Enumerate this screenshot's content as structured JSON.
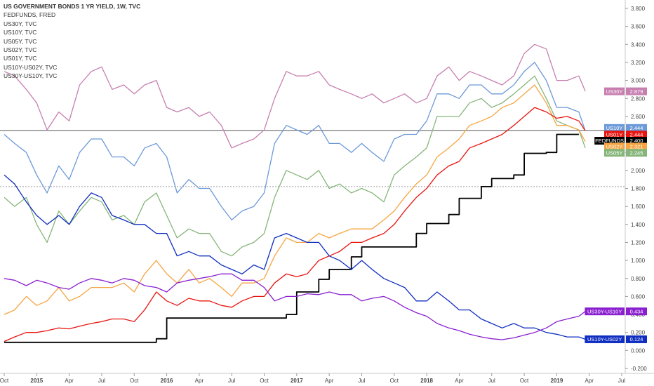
{
  "chart_data": {
    "type": "line",
    "title": "US GOVERNMENT BONDS 1 YR YIELD, 1W, TVC",
    "legend": [
      "US GOVERNMENT BONDS 1 YR YIELD, 1W, TVC",
      "FEDFUNDS, FRED",
      "US30Y, TVC",
      "US10Y, TVC",
      "US05Y, TVC",
      "US02Y, TVC",
      "US01Y, TVC",
      "US10Y-US02Y, TVC",
      "US30Y-US10Y, TVC"
    ],
    "y_axis": {
      "range": [
        -0.25,
        3.9
      ],
      "ticks": [
        "3.800",
        "3.600",
        "3.400",
        "3.200",
        "3.000",
        "2.800",
        "2.600",
        "2.400",
        "2.200",
        "2.000",
        "1.800",
        "1.600",
        "1.400",
        "1.200",
        "1.000",
        "0.800",
        "0.600",
        "0.400",
        "0.200",
        "0.000",
        "-0.200"
      ]
    },
    "x_axis": {
      "range": [
        "2014-10",
        "2019-07"
      ],
      "ticks": [
        {
          "label": "Oct",
          "t": 2014.75
        },
        {
          "label": "2015",
          "t": 2015.0,
          "bold": true
        },
        {
          "label": "Apr",
          "t": 2015.25
        },
        {
          "label": "Jul",
          "t": 2015.5
        },
        {
          "label": "Oct",
          "t": 2015.75
        },
        {
          "label": "2016",
          "t": 2016.0,
          "bold": true
        },
        {
          "label": "Apr",
          "t": 2016.25
        },
        {
          "label": "Jul",
          "t": 2016.5
        },
        {
          "label": "Oct",
          "t": 2016.75
        },
        {
          "label": "2017",
          "t": 2017.0,
          "bold": true
        },
        {
          "label": "Apr",
          "t": 2017.25
        },
        {
          "label": "Jul",
          "t": 2017.5
        },
        {
          "label": "Oct",
          "t": 2017.75
        },
        {
          "label": "2018",
          "t": 2018.0,
          "bold": true
        },
        {
          "label": "Apr",
          "t": 2018.25
        },
        {
          "label": "Jul",
          "t": 2018.5
        },
        {
          "label": "Oct",
          "t": 2018.75
        },
        {
          "label": "2019",
          "t": 2019.0,
          "bold": true
        },
        {
          "label": "Apr",
          "t": 2019.25
        },
        {
          "label": "Jul",
          "t": 2019.5
        }
      ]
    },
    "hlines": [
      {
        "value": 2.444,
        "color": "#555555"
      },
      {
        "value": 1.82,
        "color": "#9e9e9e",
        "dashed": true
      }
    ],
    "series": [
      {
        "name": "US30Y",
        "color": "#c77fb0",
        "t": [
          2014.75,
          2014.83,
          2014.92,
          2015.0,
          2015.08,
          2015.17,
          2015.25,
          2015.33,
          2015.42,
          2015.5,
          2015.58,
          2015.67,
          2015.75,
          2015.83,
          2015.92,
          2016.0,
          2016.08,
          2016.17,
          2016.25,
          2016.33,
          2016.42,
          2016.5,
          2016.58,
          2016.67,
          2016.75,
          2016.83,
          2016.92,
          2017.0,
          2017.08,
          2017.17,
          2017.25,
          2017.33,
          2017.42,
          2017.5,
          2017.58,
          2017.67,
          2017.75,
          2017.83,
          2017.92,
          2018.0,
          2018.08,
          2018.17,
          2018.25,
          2018.33,
          2018.42,
          2018.5,
          2018.58,
          2018.67,
          2018.75,
          2018.83,
          2018.92,
          2019.0,
          2019.08,
          2019.17,
          2019.22
        ],
        "values": [
          3.1,
          3.05,
          2.9,
          2.75,
          2.45,
          2.65,
          2.55,
          2.95,
          3.1,
          3.15,
          2.9,
          2.95,
          2.85,
          2.95,
          3.0,
          2.7,
          2.65,
          2.7,
          2.6,
          2.65,
          2.5,
          2.25,
          2.3,
          2.35,
          2.45,
          2.8,
          3.1,
          3.05,
          3.05,
          3.1,
          2.95,
          2.9,
          2.85,
          2.8,
          2.85,
          2.75,
          2.8,
          2.85,
          2.75,
          2.8,
          3.05,
          3.15,
          3.0,
          3.1,
          3.05,
          3.0,
          2.95,
          3.05,
          3.3,
          3.4,
          3.35,
          3.0,
          3.0,
          3.05,
          2.88
        ]
      },
      {
        "name": "US10Y",
        "color": "#6c99d8",
        "t": [
          2014.75,
          2014.83,
          2014.92,
          2015.0,
          2015.08,
          2015.17,
          2015.25,
          2015.33,
          2015.42,
          2015.5,
          2015.58,
          2015.67,
          2015.75,
          2015.83,
          2015.92,
          2016.0,
          2016.08,
          2016.17,
          2016.25,
          2016.33,
          2016.42,
          2016.5,
          2016.58,
          2016.67,
          2016.75,
          2016.83,
          2016.92,
          2017.0,
          2017.08,
          2017.17,
          2017.25,
          2017.33,
          2017.42,
          2017.5,
          2017.58,
          2017.67,
          2017.75,
          2017.83,
          2017.92,
          2018.0,
          2018.08,
          2018.17,
          2018.25,
          2018.33,
          2018.42,
          2018.5,
          2018.58,
          2018.67,
          2018.75,
          2018.83,
          2018.92,
          2019.0,
          2019.08,
          2019.17,
          2019.22
        ],
        "values": [
          2.4,
          2.3,
          2.2,
          1.95,
          1.75,
          2.05,
          1.9,
          2.2,
          2.35,
          2.35,
          2.15,
          2.15,
          2.05,
          2.25,
          2.3,
          2.15,
          1.75,
          1.9,
          1.8,
          1.8,
          1.6,
          1.45,
          1.55,
          1.6,
          1.75,
          2.3,
          2.5,
          2.45,
          2.4,
          2.5,
          2.3,
          2.3,
          2.2,
          2.3,
          2.2,
          2.1,
          2.35,
          2.4,
          2.4,
          2.55,
          2.85,
          2.85,
          2.8,
          2.95,
          2.95,
          2.85,
          2.85,
          2.95,
          3.1,
          3.2,
          3.0,
          2.7,
          2.7,
          2.65,
          2.44
        ]
      },
      {
        "name": "US05Y",
        "color": "#86b57a",
        "t": [
          2014.75,
          2014.83,
          2014.92,
          2015.0,
          2015.08,
          2015.17,
          2015.25,
          2015.33,
          2015.42,
          2015.5,
          2015.58,
          2015.67,
          2015.75,
          2015.83,
          2015.92,
          2016.0,
          2016.08,
          2016.17,
          2016.25,
          2016.33,
          2016.42,
          2016.5,
          2016.58,
          2016.67,
          2016.75,
          2016.83,
          2016.92,
          2017.0,
          2017.08,
          2017.17,
          2017.25,
          2017.33,
          2017.42,
          2017.5,
          2017.58,
          2017.67,
          2017.75,
          2017.83,
          2017.92,
          2018.0,
          2018.08,
          2018.17,
          2018.25,
          2018.33,
          2018.42,
          2018.5,
          2018.58,
          2018.67,
          2018.75,
          2018.83,
          2018.92,
          2019.0,
          2019.08,
          2019.17,
          2019.22
        ],
        "values": [
          1.7,
          1.6,
          1.7,
          1.4,
          1.2,
          1.55,
          1.4,
          1.55,
          1.7,
          1.65,
          1.45,
          1.5,
          1.4,
          1.65,
          1.75,
          1.5,
          1.25,
          1.35,
          1.3,
          1.3,
          1.1,
          1.05,
          1.15,
          1.2,
          1.3,
          1.7,
          2.0,
          1.95,
          1.9,
          2.0,
          1.8,
          1.85,
          1.75,
          1.8,
          1.75,
          1.65,
          1.95,
          2.05,
          2.15,
          2.25,
          2.6,
          2.6,
          2.6,
          2.75,
          2.8,
          2.7,
          2.75,
          2.85,
          2.95,
          3.05,
          2.8,
          2.55,
          2.5,
          2.45,
          2.25
        ]
      },
      {
        "name": "US02Y",
        "color": "#f5a542",
        "t": [
          2014.75,
          2014.83,
          2014.92,
          2015.0,
          2015.08,
          2015.17,
          2015.25,
          2015.33,
          2015.42,
          2015.5,
          2015.58,
          2015.67,
          2015.75,
          2015.83,
          2015.92,
          2016.0,
          2016.08,
          2016.17,
          2016.25,
          2016.33,
          2016.42,
          2016.5,
          2016.58,
          2016.67,
          2016.75,
          2016.83,
          2016.92,
          2017.0,
          2017.08,
          2017.17,
          2017.25,
          2017.33,
          2017.42,
          2017.5,
          2017.58,
          2017.67,
          2017.75,
          2017.83,
          2017.92,
          2018.0,
          2018.08,
          2018.17,
          2018.25,
          2018.33,
          2018.42,
          2018.5,
          2018.58,
          2018.67,
          2018.75,
          2018.83,
          2018.92,
          2019.0,
          2019.08,
          2019.17,
          2019.22
        ],
        "values": [
          0.4,
          0.45,
          0.6,
          0.5,
          0.55,
          0.7,
          0.55,
          0.6,
          0.7,
          0.7,
          0.7,
          0.75,
          0.65,
          0.85,
          1.0,
          0.85,
          0.75,
          0.9,
          0.75,
          0.8,
          0.7,
          0.6,
          0.75,
          0.75,
          0.8,
          1.05,
          1.25,
          1.2,
          1.2,
          1.3,
          1.25,
          1.3,
          1.35,
          1.35,
          1.35,
          1.45,
          1.55,
          1.7,
          1.85,
          1.95,
          2.15,
          2.25,
          2.35,
          2.5,
          2.55,
          2.6,
          2.7,
          2.75,
          2.85,
          2.95,
          2.75,
          2.5,
          2.5,
          2.45,
          2.32
        ]
      },
      {
        "name": "US01Y",
        "color": "#e8140f",
        "t": [
          2014.75,
          2014.83,
          2014.92,
          2015.0,
          2015.08,
          2015.17,
          2015.25,
          2015.33,
          2015.42,
          2015.5,
          2015.58,
          2015.67,
          2015.75,
          2015.83,
          2015.92,
          2016.0,
          2016.08,
          2016.17,
          2016.25,
          2016.33,
          2016.42,
          2016.5,
          2016.58,
          2016.67,
          2016.75,
          2016.83,
          2016.92,
          2017.0,
          2017.08,
          2017.17,
          2017.25,
          2017.33,
          2017.42,
          2017.5,
          2017.58,
          2017.67,
          2017.75,
          2017.83,
          2017.92,
          2018.0,
          2018.08,
          2018.17,
          2018.25,
          2018.33,
          2018.42,
          2018.5,
          2018.58,
          2018.67,
          2018.75,
          2018.83,
          2018.92,
          2019.0,
          2019.08,
          2019.17,
          2019.22
        ],
        "values": [
          0.1,
          0.15,
          0.2,
          0.2,
          0.22,
          0.25,
          0.24,
          0.27,
          0.3,
          0.32,
          0.35,
          0.35,
          0.32,
          0.45,
          0.65,
          0.55,
          0.5,
          0.58,
          0.55,
          0.55,
          0.5,
          0.48,
          0.55,
          0.6,
          0.6,
          0.75,
          0.85,
          0.82,
          0.85,
          1.0,
          1.05,
          1.1,
          1.2,
          1.2,
          1.25,
          1.3,
          1.4,
          1.55,
          1.7,
          1.8,
          1.95,
          2.05,
          2.1,
          2.25,
          2.3,
          2.35,
          2.4,
          2.5,
          2.6,
          2.7,
          2.65,
          2.58,
          2.6,
          2.55,
          2.44
        ]
      },
      {
        "name": "FEDFUNDS",
        "color": "#000000",
        "step": true,
        "t": [
          2014.75,
          2015.92,
          2016.0,
          2016.92,
          2017.0,
          2017.17,
          2017.25,
          2017.42,
          2017.5,
          2017.92,
          2018.0,
          2018.17,
          2018.25,
          2018.42,
          2018.5,
          2018.67,
          2018.75,
          2018.92,
          2019.0,
          2019.17
        ],
        "values": [
          0.09,
          0.13,
          0.36,
          0.4,
          0.65,
          0.79,
          0.9,
          1.04,
          1.15,
          1.3,
          1.41,
          1.51,
          1.69,
          1.82,
          1.91,
          1.95,
          2.19,
          2.2,
          2.4,
          2.4
        ]
      },
      {
        "name": "US10Y-US02Y",
        "color": "#0f2ec0",
        "t": [
          2014.75,
          2014.83,
          2014.92,
          2015.0,
          2015.08,
          2015.17,
          2015.25,
          2015.33,
          2015.42,
          2015.5,
          2015.58,
          2015.67,
          2015.75,
          2015.83,
          2015.92,
          2016.0,
          2016.08,
          2016.17,
          2016.25,
          2016.33,
          2016.42,
          2016.5,
          2016.58,
          2016.67,
          2016.75,
          2016.83,
          2016.92,
          2017.0,
          2017.08,
          2017.17,
          2017.25,
          2017.33,
          2017.42,
          2017.5,
          2017.58,
          2017.67,
          2017.75,
          2017.83,
          2017.92,
          2018.0,
          2018.08,
          2018.17,
          2018.25,
          2018.33,
          2018.42,
          2018.5,
          2018.58,
          2018.67,
          2018.75,
          2018.83,
          2018.92,
          2019.0,
          2019.08,
          2019.17,
          2019.22
        ],
        "values": [
          1.95,
          1.85,
          1.65,
          1.5,
          1.4,
          1.5,
          1.4,
          1.6,
          1.75,
          1.7,
          1.5,
          1.45,
          1.4,
          1.4,
          1.3,
          1.3,
          1.05,
          1.1,
          1.05,
          1.05,
          0.95,
          0.9,
          0.85,
          0.95,
          0.9,
          1.25,
          1.3,
          1.25,
          1.2,
          1.2,
          1.05,
          1.0,
          0.9,
          1.0,
          0.9,
          0.8,
          0.75,
          0.7,
          0.55,
          0.55,
          0.65,
          0.55,
          0.45,
          0.45,
          0.35,
          0.3,
          0.25,
          0.3,
          0.25,
          0.25,
          0.2,
          0.18,
          0.15,
          0.15,
          0.124
        ]
      },
      {
        "name": "US30Y-US10Y",
        "color": "#8a1fd0",
        "t": [
          2014.75,
          2014.83,
          2014.92,
          2015.0,
          2015.08,
          2015.17,
          2015.25,
          2015.33,
          2015.42,
          2015.5,
          2015.58,
          2015.67,
          2015.75,
          2015.83,
          2015.92,
          2016.0,
          2016.08,
          2016.17,
          2016.25,
          2016.33,
          2016.42,
          2016.5,
          2016.58,
          2016.67,
          2016.75,
          2016.83,
          2016.92,
          2017.0,
          2017.08,
          2017.17,
          2017.25,
          2017.33,
          2017.42,
          2017.5,
          2017.58,
          2017.67,
          2017.75,
          2017.83,
          2017.92,
          2018.0,
          2018.08,
          2018.17,
          2018.25,
          2018.33,
          2018.42,
          2018.5,
          2018.58,
          2018.67,
          2018.75,
          2018.83,
          2018.92,
          2019.0,
          2019.08,
          2019.17,
          2019.22
        ],
        "values": [
          0.8,
          0.78,
          0.72,
          0.78,
          0.75,
          0.7,
          0.68,
          0.75,
          0.8,
          0.78,
          0.75,
          0.8,
          0.78,
          0.72,
          0.7,
          0.65,
          0.75,
          0.78,
          0.8,
          0.82,
          0.85,
          0.85,
          0.78,
          0.78,
          0.7,
          0.55,
          0.6,
          0.6,
          0.63,
          0.62,
          0.65,
          0.62,
          0.62,
          0.55,
          0.58,
          0.6,
          0.55,
          0.48,
          0.42,
          0.38,
          0.3,
          0.25,
          0.22,
          0.18,
          0.15,
          0.13,
          0.12,
          0.14,
          0.17,
          0.2,
          0.25,
          0.32,
          0.35,
          0.38,
          0.434
        ]
      }
    ],
    "badges": [
      {
        "label": "US30Y",
        "value": "2.879",
        "y": 2.879,
        "color": "#c77fb0"
      },
      {
        "label": "US10Y",
        "value": "2.444",
        "y": 2.472,
        "color": "#6c99d8"
      },
      {
        "label": "US01Y",
        "value": "2.444",
        "y": 2.398,
        "color": "#e8140f",
        "sep": false
      },
      {
        "label": "FEDFUNDS",
        "value": "2.400",
        "y": 2.33,
        "color": "#000000"
      },
      {
        "label": "US02Y",
        "value": "2.321",
        "y": 2.264,
        "color": "#f5a542"
      },
      {
        "label": "US05Y",
        "value": "2.245",
        "y": 2.196,
        "color": "#86b57a"
      },
      {
        "label": "US30Y-US10Y",
        "value": "0.434",
        "y": 0.434,
        "color": "#8a1fd0"
      },
      {
        "label": "US10Y-US02Y",
        "value": "0.124",
        "y": 0.124,
        "color": "#0f2ec0"
      }
    ],
    "extra_price_label": {
      "value": "2.444",
      "y": 2.444,
      "color": "#e8140f"
    }
  }
}
